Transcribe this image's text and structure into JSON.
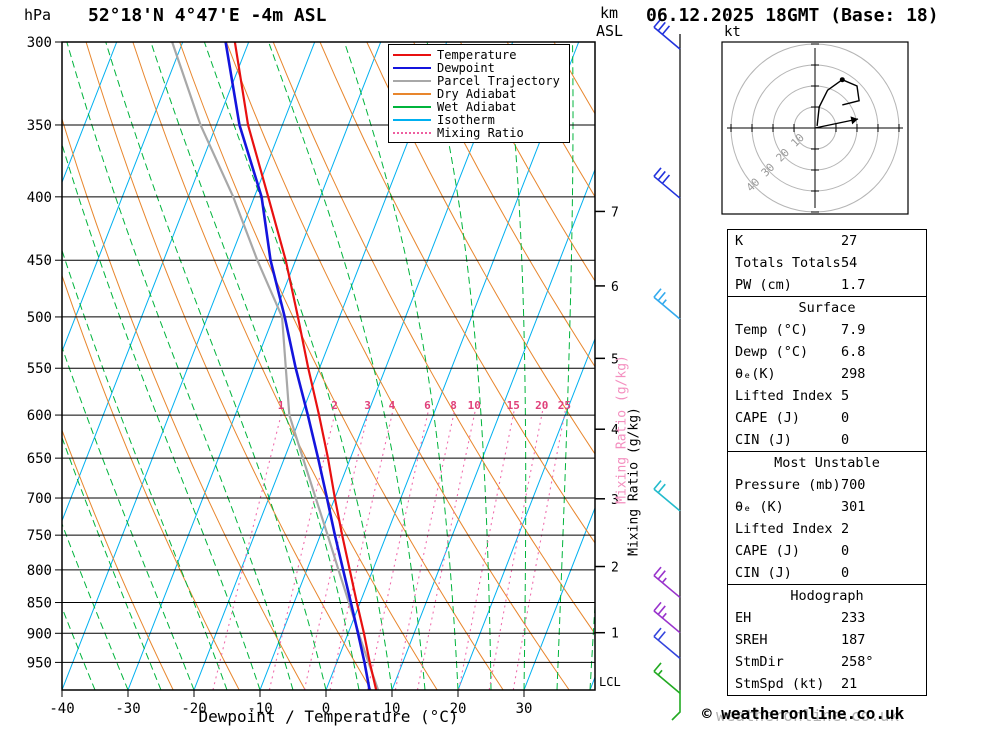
{
  "header": {
    "pressure_unit": "hPa",
    "station_title": "52°18'N 4°47'E -4m ASL",
    "km_label": "km",
    "asl_label": "ASL",
    "datetime_title": "06.12.2025 18GMT (Base: 18)"
  },
  "axes": {
    "pressure_ticks": [
      300,
      350,
      400,
      450,
      500,
      550,
      600,
      650,
      700,
      750,
      800,
      850,
      900,
      950
    ],
    "temp_ticks": [
      -40,
      -30,
      -20,
      -10,
      0,
      10,
      20,
      30
    ],
    "xlabel": "Dewpoint / Temperature (°C)",
    "km_ticks": [
      7,
      6,
      5,
      4,
      3,
      2,
      1
    ],
    "lcl_label": "LCL",
    "mixing_ratio_axis_label": "Mixing Ratio (g/kg)"
  },
  "legend": {
    "items": [
      {
        "label": "Temperature",
        "color": "#e81010",
        "style": "solid"
      },
      {
        "label": "Dewpoint",
        "color": "#1414dd",
        "style": "solid"
      },
      {
        "label": "Parcel Trajectory",
        "color": "#a8a8a8",
        "style": "solid"
      },
      {
        "label": "Dry Adiabat",
        "color": "#e8862d",
        "style": "solid"
      },
      {
        "label": "Wet Adiabat",
        "color": "#00b43c",
        "style": "solid"
      },
      {
        "label": "Isotherm",
        "color": "#00b0f0",
        "style": "solid"
      },
      {
        "label": "Mixing Ratio",
        "color": "#ee5fa0",
        "style": "dotted"
      }
    ]
  },
  "hodograph": {
    "unit_label": "kt",
    "ring_values": [
      10,
      20,
      30,
      40
    ],
    "trace_kt": [
      [
        1,
        1
      ],
      [
        2,
        10
      ],
      [
        6,
        18
      ],
      [
        13,
        23
      ],
      [
        20,
        20
      ],
      [
        21,
        13
      ],
      [
        13,
        11
      ]
    ],
    "marker_index": 3,
    "storm_motion_kt": [
      20.5,
      4.3
    ]
  },
  "stats": {
    "sections": [
      {
        "header": null,
        "rows": [
          [
            "K",
            "27"
          ],
          [
            "Totals Totals",
            "54"
          ],
          [
            "PW (cm)",
            "1.7"
          ]
        ]
      },
      {
        "header": "Surface",
        "rows": [
          [
            "Temp (°C)",
            "7.9"
          ],
          [
            "Dewp (°C)",
            "6.8"
          ],
          [
            "θₑ(K)",
            "298"
          ],
          [
            "Lifted Index",
            "5"
          ],
          [
            "CAPE (J)",
            "0"
          ],
          [
            "CIN (J)",
            "0"
          ]
        ]
      },
      {
        "header": "Most Unstable",
        "rows": [
          [
            "Pressure (mb)",
            "700"
          ],
          [
            "θₑ (K)",
            "301"
          ],
          [
            "Lifted Index",
            "2"
          ],
          [
            "CAPE (J)",
            "0"
          ],
          [
            "CIN (J)",
            "0"
          ]
        ]
      },
      {
        "header": "Hodograph",
        "rows": [
          [
            "EH",
            "233"
          ],
          [
            "SREH",
            "187"
          ],
          [
            "StmDir",
            "258°"
          ],
          [
            "StmSpd (kt)",
            "21"
          ]
        ]
      }
    ]
  },
  "footer": {
    "credit": "© weatheronline.co.uk",
    "watermark": "weatheronline.co.uk"
  },
  "chart_data": {
    "type": "skewt_log_p_sounding",
    "title": "52°18'N 4°47'E -4m ASL  06.12.2025 18GMT (Base: 18)",
    "pressure_hPa": [
      1000,
      950,
      900,
      850,
      800,
      750,
      700,
      650,
      600,
      550,
      500,
      450,
      400,
      350,
      300
    ],
    "temperature_C": [
      7.6,
      5.0,
      2.4,
      -0.5,
      -3.5,
      -6.7,
      -10.0,
      -13.4,
      -17.3,
      -21.7,
      -26.3,
      -31.5,
      -37.9,
      -45.2,
      -52.1
    ],
    "dewpoint_C": [
      6.6,
      4.2,
      1.5,
      -1.4,
      -4.5,
      -7.8,
      -11.2,
      -14.9,
      -19.0,
      -23.6,
      -28.3,
      -33.8,
      -38.9,
      -46.5,
      -53.5
    ],
    "parcel_C": [
      7.9,
      4.8,
      1.6,
      -1.7,
      -5.2,
      -8.9,
      -12.9,
      -17.2,
      -21.8,
      -25.1,
      -28.7,
      -35.8,
      -43.2,
      -52.4,
      -61.6
    ],
    "mixing_ratio_lines_g_kg": [
      1,
      2,
      3,
      4,
      6,
      8,
      10,
      15,
      20,
      25
    ],
    "wind_barbs": [
      {
        "pressure_hPa": 304,
        "speed_kt": 30,
        "color": "#2233dd"
      },
      {
        "pressure_hPa": 401,
        "speed_kt": 30,
        "color": "#2233dd"
      },
      {
        "pressure_hPa": 502,
        "speed_kt": 25,
        "color": "#33aaee"
      },
      {
        "pressure_hPa": 717,
        "speed_kt": 20,
        "color": "#22bbcc"
      },
      {
        "pressure_hPa": 842,
        "speed_kt": 25,
        "color": "#9933cc"
      },
      {
        "pressure_hPa": 899,
        "speed_kt": 25,
        "color": "#9933cc"
      },
      {
        "pressure_hPa": 943,
        "speed_kt": 20,
        "color": "#3344dd"
      },
      {
        "pressure_hPa": 1006,
        "speed_kt": 15,
        "color": "#22aa22"
      }
    ],
    "km_asl_pressures": {
      "7": 411,
      "6": 472,
      "5": 540,
      "4": 616,
      "3": 701,
      "2": 795,
      "1": 899
    },
    "lcl_pressure_hPa": 985,
    "axis_ranges": {
      "pressure_hPa": [
        300,
        1000
      ],
      "surface_temperature_C": [
        -40,
        40
      ]
    },
    "surface": {
      "temp_C": 7.9,
      "dewp_C": 6.8,
      "theta_e_K": 298,
      "lifted_index": 5,
      "cape_J": 0,
      "cin_J": 0
    },
    "most_unstable": {
      "pressure_mb": 700,
      "theta_e_K": 301,
      "lifted_index": 2,
      "cape_J": 0,
      "cin_J": 0
    },
    "indices": {
      "K": 27,
      "totals_totals": 54,
      "pw_cm": 1.7,
      "EH": 233,
      "SREH": 187,
      "storm_dir_deg": 258,
      "storm_spd_kt": 21
    },
    "colors": {
      "temperature": "#e81010",
      "dewpoint": "#1414dd",
      "parcel": "#a8a8a8",
      "dry_adiabat": "#e8862d",
      "wet_adiabat": "#00b43c",
      "isotherm": "#00b0f0",
      "mixing_ratio": "#f06eae",
      "mixing_ratio_label": "#e0407a",
      "grid": "#000000"
    }
  }
}
